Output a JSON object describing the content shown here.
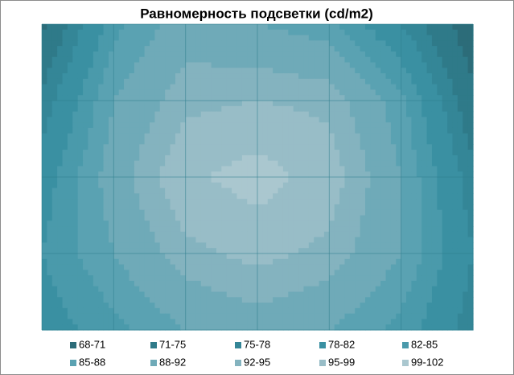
{
  "chart_data": {
    "type": "contour",
    "title": "Равномерность подсветки (cd/m2)",
    "z": [
      [
        70,
        84,
        90,
        88,
        86,
        78,
        68
      ],
      [
        76,
        88,
        94,
        95,
        94,
        86,
        72
      ],
      [
        80,
        90,
        98,
        101,
        97,
        88,
        76
      ],
      [
        82,
        88,
        94,
        96,
        94,
        88,
        78
      ],
      [
        80,
        84,
        88,
        90,
        88,
        84,
        76
      ]
    ],
    "bands": [
      {
        "label": "68-71",
        "range": [
          68,
          71
        ],
        "color": "#2c6c79"
      },
      {
        "label": "71-75",
        "range": [
          71,
          75
        ],
        "color": "#2f7a89"
      },
      {
        "label": "75-78",
        "range": [
          75,
          78
        ],
        "color": "#3486 97"
      },
      {
        "label": "78-82",
        "range": [
          78,
          82
        ],
        "color": "#3a90a2"
      },
      {
        "label": "82-85",
        "range": [
          82,
          85
        ],
        "color": "#4a9aab"
      },
      {
        "label": "85-88",
        "range": [
          85,
          88
        ],
        "color": "#5aa2b2"
      },
      {
        "label": "88-92",
        "range": [
          88,
          92
        ],
        "color": "#6faab8"
      },
      {
        "label": "92-95",
        "range": [
          92,
          95
        ],
        "color": "#84b3bf"
      },
      {
        "label": "95-99",
        "range": [
          95,
          99
        ],
        "color": "#98bdc7"
      },
      {
        "label": "99-102",
        "range": [
          99,
          102
        ],
        "color": "#aac7cf"
      }
    ]
  }
}
